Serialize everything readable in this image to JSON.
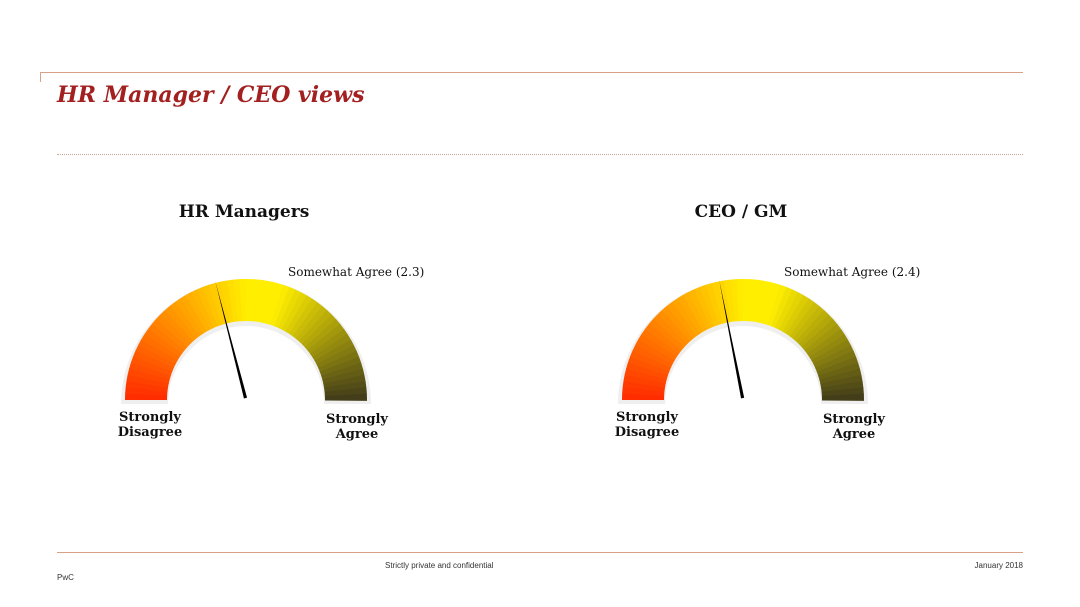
{
  "slide": {
    "title": "HR Manager / CEO views"
  },
  "colors": {
    "title": "#a32020",
    "rule": "#d9a08a",
    "gauge_start": "#ff2a00",
    "gauge_mid": "#ffee00",
    "gauge_end": "#3f3a1a",
    "needle": "#000000"
  },
  "chart_data": [
    {
      "type": "gauge",
      "title": "HR Managers",
      "value": 2.3,
      "value_label": "Somewhat Agree (2.3)",
      "min_label": [
        "Strongly",
        "Disagree"
      ],
      "max_label": [
        "Strongly",
        "Agree"
      ]
    },
    {
      "type": "gauge",
      "title": "CEO / GM",
      "value": 2.4,
      "value_label": "Somewhat Agree (2.4)",
      "min_label": [
        "Strongly",
        "Disagree"
      ],
      "max_label": [
        "Strongly",
        "Agree"
      ]
    }
  ],
  "footer": {
    "confidentiality": "Strictly private and confidential",
    "date": "January 2018",
    "brand": "PwC"
  }
}
